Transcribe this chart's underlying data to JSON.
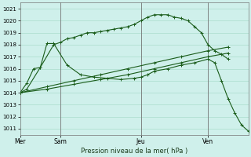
{
  "title": "Pression niveau de la mer( hPa )",
  "bg_color": "#cff0eb",
  "line_color": "#1a5c1a",
  "grid_color": "#aaddcc",
  "ylim_min": 1010.5,
  "ylim_max": 1021.5,
  "yticks": [
    1011,
    1012,
    1013,
    1014,
    1015,
    1016,
    1017,
    1018,
    1019,
    1020,
    1021
  ],
  "xlim": [
    0,
    68
  ],
  "xtick_positions": [
    0,
    12,
    36,
    56
  ],
  "xtick_labels": [
    "Mer",
    "Sam",
    "Jeu",
    "Ven"
  ],
  "vlines": [
    12,
    36,
    56
  ],
  "series": [
    {
      "x": [
        0,
        2,
        6,
        10,
        12,
        14,
        16,
        18,
        20,
        22,
        24,
        26,
        28,
        30,
        32,
        34,
        36,
        38,
        40,
        42,
        44,
        46,
        48,
        50,
        52,
        54,
        56,
        58,
        60,
        62
      ],
      "y": [
        1014.0,
        1014.3,
        1016.1,
        1018.0,
        1018.2,
        1018.5,
        1018.6,
        1018.8,
        1019.0,
        1019.0,
        1019.1,
        1019.2,
        1019.3,
        1019.4,
        1019.5,
        1019.7,
        1020.0,
        1020.3,
        1020.5,
        1020.5,
        1020.5,
        1020.3,
        1020.2,
        1020.0,
        1019.5,
        1019.0,
        1018.0,
        1017.5,
        1017.2,
        1016.8
      ]
    },
    {
      "x": [
        0,
        8,
        16,
        24,
        32,
        40,
        48,
        56,
        62
      ],
      "y": [
        1014.0,
        1014.5,
        1015.0,
        1015.5,
        1016.0,
        1016.5,
        1017.0,
        1017.5,
        1017.8
      ]
    },
    {
      "x": [
        0,
        8,
        16,
        24,
        32,
        40,
        48,
        56,
        62
      ],
      "y": [
        1014.0,
        1014.3,
        1014.7,
        1015.1,
        1015.5,
        1016.0,
        1016.5,
        1017.0,
        1017.3
      ]
    },
    {
      "x": [
        0,
        2,
        4,
        6,
        8,
        10,
        14,
        18,
        22,
        26,
        30,
        34,
        36,
        38,
        40,
        44,
        48,
        52,
        56,
        58,
        60,
        62,
        64,
        66,
        68
      ],
      "y": [
        1014.0,
        1014.8,
        1016.0,
        1016.1,
        1018.1,
        1018.1,
        1016.3,
        1015.5,
        1015.3,
        1015.2,
        1015.1,
        1015.2,
        1015.3,
        1015.5,
        1015.8,
        1016.0,
        1016.3,
        1016.5,
        1016.8,
        1016.5,
        1015.0,
        1013.5,
        1012.3,
        1011.3,
        1010.8
      ]
    }
  ]
}
